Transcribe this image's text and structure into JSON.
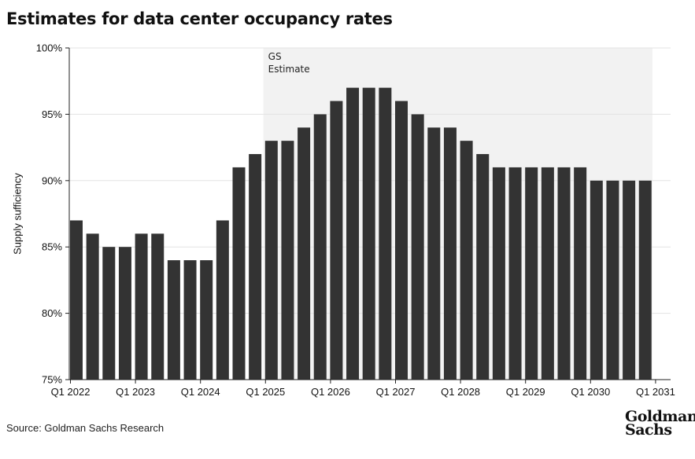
{
  "title": "Estimates for data center occupancy rates",
  "source": "Source: Goldman Sachs Research",
  "logo": {
    "line1": "Goldman",
    "line2": "Sachs"
  },
  "chart_data": {
    "type": "bar",
    "title": "Estimates for data center occupancy rates",
    "xlabel": "",
    "ylabel": "Supply sufficiency",
    "ylim": [
      75,
      100
    ],
    "yticks": [
      75,
      80,
      85,
      90,
      95,
      100
    ],
    "ytick_labels": [
      "75%",
      "80%",
      "85%",
      "90%",
      "95%",
      "100%"
    ],
    "xtick_labels": [
      "Q1 2022",
      "Q1 2023",
      "Q1 2024",
      "Q1 2025",
      "Q1 2026",
      "Q1 2027",
      "Q1 2028",
      "Q1 2029",
      "Q1 2030",
      "Q1 2031"
    ],
    "categories": [
      "Q1 2022",
      "Q2 2022",
      "Q3 2022",
      "Q4 2022",
      "Q1 2023",
      "Q2 2023",
      "Q3 2023",
      "Q4 2023",
      "Q1 2024",
      "Q2 2024",
      "Q3 2024",
      "Q4 2024",
      "Q1 2025",
      "Q2 2025",
      "Q3 2025",
      "Q4 2025",
      "Q1 2026",
      "Q2 2026",
      "Q3 2026",
      "Q4 2026",
      "Q1 2027",
      "Q2 2027",
      "Q3 2027",
      "Q4 2027",
      "Q1 2028",
      "Q2 2028",
      "Q3 2028",
      "Q4 2028",
      "Q1 2029",
      "Q2 2029",
      "Q3 2029",
      "Q4 2029",
      "Q1 2030",
      "Q2 2030",
      "Q3 2030",
      "Q4 2030"
    ],
    "values": [
      87,
      86,
      85,
      85,
      86,
      86,
      84,
      84,
      84,
      87,
      91,
      92,
      93,
      93,
      94,
      95,
      96,
      97,
      97,
      97,
      96,
      95,
      94,
      94,
      93,
      92,
      91,
      91,
      91,
      91,
      91,
      91,
      90,
      90,
      90,
      90
    ],
    "bar_color": "#333333",
    "estimate_region": {
      "label_line1": "GS",
      "label_line2": "Estimate",
      "start_category": "Q4 2024",
      "color": "#f2f2f2"
    },
    "grid": true
  }
}
